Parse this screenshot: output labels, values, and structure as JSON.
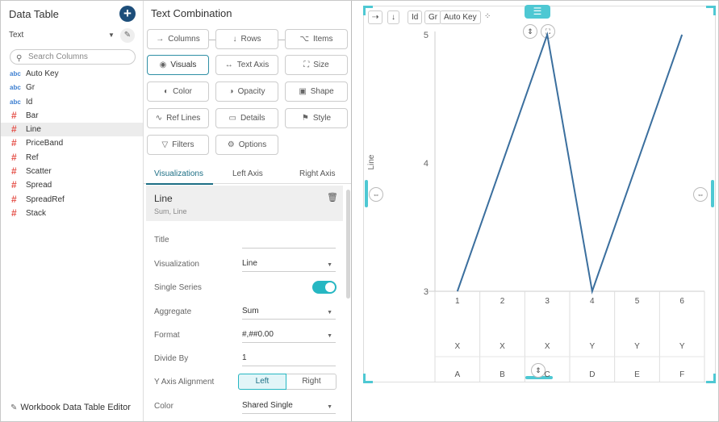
{
  "left_panel": {
    "title": "Data Table",
    "source_select": "Text",
    "search_placeholder": "Search Columns",
    "columns": [
      {
        "type": "abc",
        "name": "Auto Key"
      },
      {
        "type": "abc",
        "name": "Gr"
      },
      {
        "type": "abc",
        "name": "Id"
      },
      {
        "type": "#",
        "name": "Bar"
      },
      {
        "type": "#",
        "name": "Line",
        "selected": true
      },
      {
        "type": "#",
        "name": "PriceBand"
      },
      {
        "type": "#",
        "name": "Ref"
      },
      {
        "type": "#",
        "name": "Scatter"
      },
      {
        "type": "#",
        "name": "Spread"
      },
      {
        "type": "#",
        "name": "SpreadRef"
      },
      {
        "type": "#",
        "name": "Stack"
      }
    ],
    "footer_link": "Workbook Data Table Editor"
  },
  "middle_panel": {
    "title": "Text Combination",
    "variable_buttons": {
      "columns": "Columns",
      "rows": "Rows",
      "items": "Items",
      "visuals": "Visuals",
      "text_axis": "Text Axis",
      "size": "Size",
      "color": "Color",
      "opacity": "Opacity",
      "shape": "Shape",
      "ref_lines": "Ref Lines",
      "details": "Details",
      "style": "Style",
      "filters": "Filters",
      "options": "Options"
    },
    "tabs": [
      "Visualizations",
      "Left Axis",
      "Right Axis"
    ],
    "active_tab": "Visualizations",
    "visual_item": {
      "name": "Line",
      "subtitle": "Sum, Line"
    },
    "properties": {
      "title_label": "Title",
      "title_value": "",
      "visualization_label": "Visualization",
      "visualization_value": "Line",
      "single_series_label": "Single Series",
      "single_series_on": true,
      "aggregate_label": "Aggregate",
      "aggregate_value": "Sum",
      "format_label": "Format",
      "format_value": "#,##0.00",
      "divide_by_label": "Divide By",
      "divide_by_value": "1",
      "y_axis_alignment_label": "Y Axis Alignment",
      "y_axis_left": "Left",
      "y_axis_right": "Right",
      "y_axis_selected": "Left",
      "color_label": "Color",
      "color_value": "Shared Single"
    }
  },
  "right_panel": {
    "toolbar": {
      "id_chip": "Id",
      "gr_chip": "Gr",
      "auto_key_chip": "Auto Key"
    },
    "colors": {
      "accent": "#4ec8d3",
      "line": "#3b6f9e",
      "add_button": "#1d4e7a"
    }
  },
  "chart_data": {
    "type": "line",
    "ylabel": "Line",
    "ylim": [
      3,
      5
    ],
    "yticks": [
      "3",
      "4",
      "5"
    ],
    "x": [
      "1",
      "2",
      "3",
      "4",
      "5",
      "6"
    ],
    "series": [
      {
        "values": [
          3,
          null,
          5,
          3,
          null,
          5
        ]
      }
    ],
    "x_rows": {
      "gr": [
        "X",
        "X",
        "X",
        "Y",
        "Y",
        "Y"
      ],
      "id": [
        "A",
        "B",
        "C",
        "D",
        "E",
        "F"
      ]
    }
  }
}
